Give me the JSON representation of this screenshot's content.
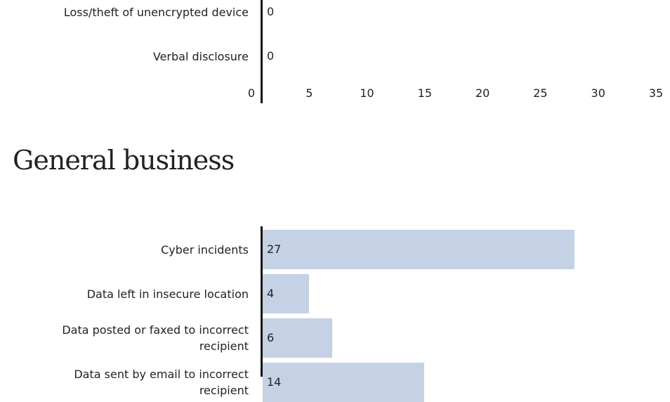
{
  "chart_data": [
    {
      "type": "bar",
      "orientation": "horizontal",
      "categories": [
        "Loss/theft of unencrypted device",
        "Verbal disclosure"
      ],
      "values": [
        0,
        0
      ],
      "color": "#c5d1e5",
      "xlim": [
        0,
        35
      ],
      "xticks": [
        0,
        5,
        10,
        15,
        20,
        25,
        30,
        35
      ]
    },
    {
      "type": "bar",
      "orientation": "horizontal",
      "title": "General business",
      "categories": [
        "Cyber incidents",
        "Data left in insecure location",
        "Data posted or faxed to incorrect recipient",
        "Data sent by email to incorrect recipient"
      ],
      "values": [
        27,
        4,
        6,
        14
      ],
      "color": "#c5d1e5",
      "xlim": [
        0,
        35
      ]
    }
  ]
}
